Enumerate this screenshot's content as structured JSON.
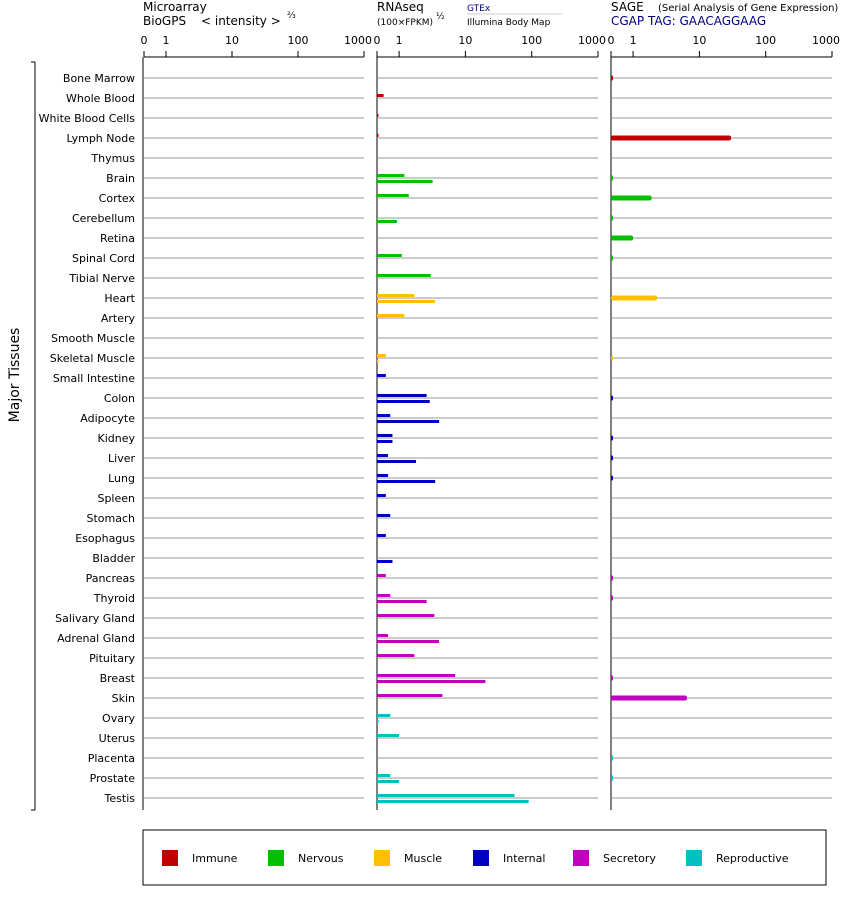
{
  "headers": {
    "microarray_line1": "Microarray",
    "microarray_line2": "BioGPS",
    "microarray_scale": "< intensity >",
    "microarray_exp": "⅔",
    "rnaseq_line1": "RNAseq",
    "rnaseq_sub": "(100×FPKM)",
    "rnaseq_exp": "½",
    "rnaseq_src1": "GTEx",
    "rnaseq_src2": "Illumina Body Map",
    "sage_line1": "SAGE",
    "sage_sub": "(Serial Analysis of Gene Expression)",
    "sage_tag": "CGAP TAG: GAACAGGAAG"
  },
  "y_axis_label": "Major Tissues",
  "ticks": [
    "0",
    "1",
    "10",
    "100",
    "1000"
  ],
  "colors": {
    "Immune": "#c00000",
    "Nervous": "#00c000",
    "Muscle": "#ffc000",
    "Internal": "#0000c0",
    "Secretory": "#c000c0",
    "Reproductive": "#00c0c0"
  },
  "legend": [
    "Immune",
    "Nervous",
    "Muscle",
    "Internal",
    "Secretory",
    "Reproductive"
  ],
  "chart_data": {
    "type": "bar",
    "orientation": "horizontal",
    "scale": "log (0, 1, 10, 100, 1000)",
    "xlim": [
      0,
      1000
    ],
    "categories": [
      "Bone Marrow",
      "Whole Blood",
      "White Blood Cells",
      "Lymph Node",
      "Thymus",
      "Brain",
      "Cortex",
      "Cerebellum",
      "Retina",
      "Spinal Cord",
      "Tibial Nerve",
      "Heart",
      "Artery",
      "Smooth Muscle",
      "Skeletal Muscle",
      "Small Intestine",
      "Colon",
      "Adipocyte",
      "Kidney",
      "Liver",
      "Lung",
      "Spleen",
      "Stomach",
      "Esophagus",
      "Bladder",
      "Pancreas",
      "Thyroid",
      "Salivary Gland",
      "Adrenal Gland",
      "Pituitary",
      "Breast",
      "Skin",
      "Ovary",
      "Uterus",
      "Placenta",
      "Prostate",
      "Testis"
    ],
    "systems": [
      "Immune",
      "Immune",
      "Immune",
      "Immune",
      "Immune",
      "Nervous",
      "Nervous",
      "Nervous",
      "Nervous",
      "Nervous",
      "Nervous",
      "Muscle",
      "Muscle",
      "Muscle",
      "Muscle",
      "Internal",
      "Internal",
      "Internal",
      "Internal",
      "Internal",
      "Internal",
      "Internal",
      "Internal",
      "Internal",
      "Internal",
      "Secretory",
      "Secretory",
      "Secretory",
      "Secretory",
      "Secretory",
      "Secretory",
      "Secretory",
      "Reproductive",
      "Reproductive",
      "Reproductive",
      "Reproductive",
      "Reproductive"
    ],
    "series": [
      {
        "name": "Microarray",
        "values": [
          0,
          0,
          0,
          0,
          0,
          0,
          0,
          0,
          0,
          0,
          0,
          0,
          0,
          0,
          0,
          0,
          0,
          0,
          0,
          0,
          0,
          0,
          0,
          0,
          0,
          0,
          0,
          0,
          0,
          0,
          0,
          0,
          0,
          0,
          0,
          0,
          0
        ]
      },
      {
        "name": "GTEx",
        "values": [
          null,
          0.3,
          0,
          0,
          null,
          1.2,
          1.4,
          null,
          null,
          1.1,
          3.0,
          1.7,
          1.2,
          null,
          0.4,
          0.4,
          2.6,
          0.6,
          0.7,
          0.5,
          0.5,
          0.4,
          0.6,
          0.4,
          null,
          0.4,
          0.6,
          3.4,
          0.5,
          1.7,
          7.0,
          4.5,
          0.6,
          1.0,
          null,
          0.6,
          55
        ]
      },
      {
        "name": "Illumina Body Map",
        "values": [
          null,
          null,
          null,
          null,
          null,
          3.2,
          null,
          0.9,
          null,
          null,
          null,
          3.5,
          null,
          null,
          0,
          null,
          2.9,
          4.0,
          0.7,
          1.8,
          3.5,
          null,
          null,
          null,
          0.7,
          null,
          2.6,
          null,
          4.0,
          null,
          20,
          null,
          0,
          null,
          null,
          1.0,
          90
        ]
      },
      {
        "name": "SAGE",
        "values": [
          0,
          null,
          null,
          30,
          null,
          0,
          1.9,
          0,
          1.0,
          0,
          null,
          2.3,
          null,
          null,
          0,
          null,
          0,
          null,
          0,
          0,
          0,
          null,
          null,
          null,
          null,
          0,
          0,
          null,
          null,
          null,
          0,
          6.5,
          null,
          null,
          0,
          0,
          null
        ]
      }
    ]
  }
}
